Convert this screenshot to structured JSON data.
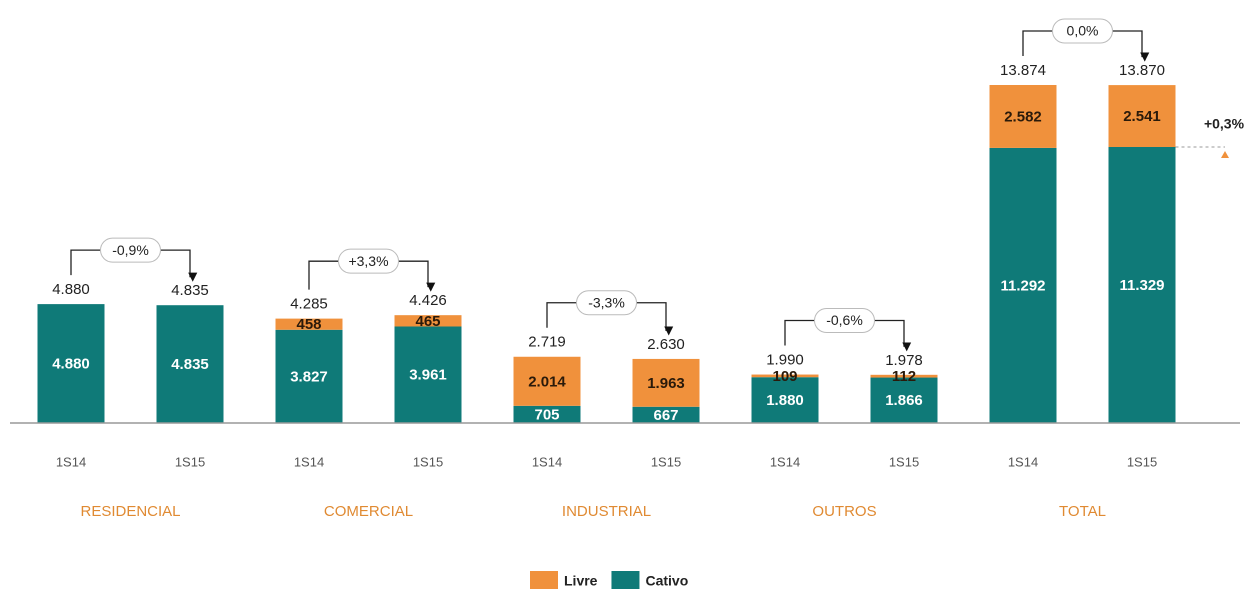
{
  "chart_data": {
    "type": "bar",
    "stacked": true,
    "categories": [
      "1S14",
      "1S15",
      "1S14",
      "1S15",
      "1S14",
      "1S15",
      "1S14",
      "1S15",
      "1S14",
      "1S15"
    ],
    "groups": [
      "RESIDENCIAL",
      "COMERCIAL",
      "INDUSTRIAL",
      "OUTROS",
      "TOTAL"
    ],
    "series": [
      {
        "name": "Livre",
        "color": "#f0913c",
        "values": [
          null,
          null,
          458,
          465,
          2014,
          1963,
          109,
          112,
          2582,
          2541
        ],
        "value_labels": [
          null,
          null,
          "458",
          "465",
          "2.014",
          "1.963",
          "109",
          "112",
          "2.582",
          "2.541"
        ]
      },
      {
        "name": "Cativo",
        "color": "#0f7a78",
        "values": [
          4880,
          4835,
          3827,
          3961,
          705,
          667,
          1880,
          1866,
          11292,
          11329
        ],
        "value_labels": [
          "4.880",
          "4.835",
          "3.827",
          "3.961",
          "705",
          "667",
          "1.880",
          "1.866",
          "11.292",
          "11.329"
        ]
      }
    ],
    "totals": {
      "values": [
        4880,
        4835,
        4285,
        4426,
        2719,
        2630,
        1990,
        1978,
        13874,
        13870
      ],
      "value_labels": [
        "4.880",
        "4.835",
        "4.285",
        "4.426",
        "2.719",
        "2.630",
        "1.990",
        "1.978",
        "13.874",
        "13.870"
      ]
    },
    "changes": [
      "-0,9%",
      "+3,3%",
      "-3,3%",
      "-0,6%",
      "0,0%"
    ],
    "annotation": "+0,3%",
    "ylim": [
      0,
      14000
    ]
  }
}
